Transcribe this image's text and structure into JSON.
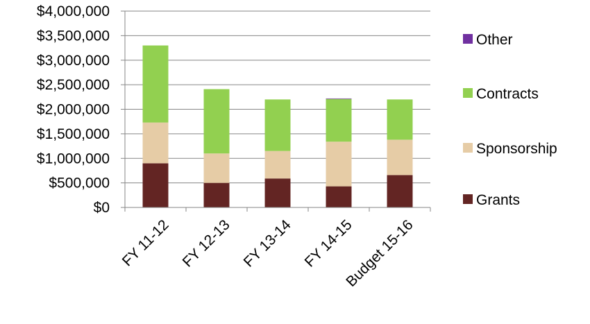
{
  "chart_data": {
    "type": "bar",
    "stacked": true,
    "categories": [
      "FY 11-12",
      "FY 12-13",
      "FY 13-14",
      "FY 14-15",
      "Budget 15-16"
    ],
    "series": [
      {
        "name": "Grants",
        "color": "#632523",
        "values": [
          900000,
          500000,
          590000,
          430000,
          660000
        ]
      },
      {
        "name": "Sponsorship",
        "color": "#e6cca6",
        "values": [
          830000,
          600000,
          560000,
          910000,
          720000
        ]
      },
      {
        "name": "Contracts",
        "color": "#92d050",
        "values": [
          1570000,
          1310000,
          1050000,
          870000,
          820000
        ]
      },
      {
        "name": "Other",
        "color": "#7030a0",
        "values": [
          0,
          0,
          0,
          10000,
          0
        ]
      }
    ],
    "ylim": [
      0,
      4000000
    ],
    "yticks": [
      "$0",
      "$500,000",
      "$1,000,000",
      "$1,500,000",
      "$2,000,000",
      "$2,500,000",
      "$3,000,000",
      "$3,500,000",
      "$4,000,000"
    ],
    "ytick_values": [
      0,
      500000,
      1000000,
      1500000,
      2000000,
      2500000,
      3000000,
      3500000,
      4000000
    ],
    "grid": true,
    "legend_position": "right",
    "legend_order": [
      "Other",
      "Contracts",
      "Sponsorship",
      "Grants"
    ],
    "title": "",
    "xlabel": "",
    "ylabel": ""
  }
}
